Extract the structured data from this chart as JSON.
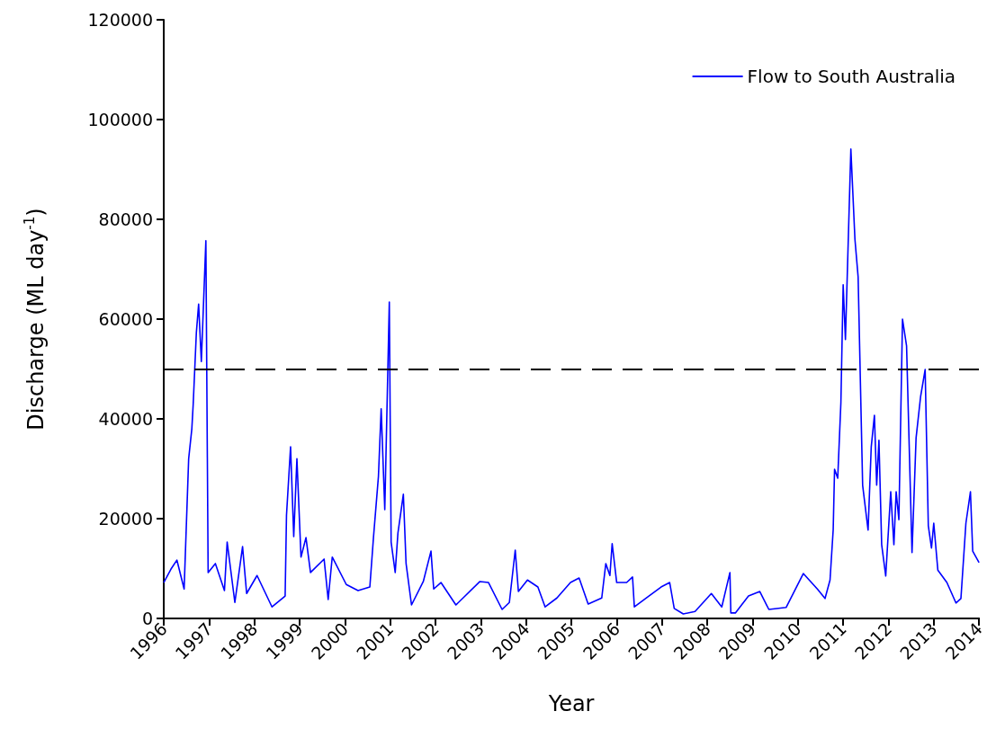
{
  "chart_data": {
    "type": "line",
    "xlabel": "Year",
    "ylabel": "Discharge (ML day$^{-1}$)",
    "xlim": [
      1996,
      2014
    ],
    "xticks": [
      1996,
      1997,
      1998,
      1999,
      2000,
      2001,
      2002,
      2003,
      2004,
      2005,
      2006,
      2007,
      2008,
      2009,
      2010,
      2011,
      2012,
      2013,
      2014
    ],
    "ylim": [
      0,
      120000
    ],
    "yticks": [
      0,
      20000,
      40000,
      60000,
      80000,
      100000,
      120000
    ],
    "grid": false,
    "legend": "top right",
    "marker": "none",
    "line_style": "solid",
    "ref_lines": [
      {
        "axis": "y",
        "value": 50000,
        "label": null,
        "color": "#000000",
        "line_style": "dashed"
      }
    ],
    "series": [
      {
        "name": "Flow to South Australia",
        "color": "#0000ff",
        "x": [
          1996.0,
          1996.16,
          1996.29,
          1996.45,
          1996.55,
          1996.62,
          1996.65,
          1996.72,
          1996.77,
          1996.83,
          1996.93,
          1996.98,
          1997.14,
          1997.34,
          1997.4,
          1997.57,
          1997.74,
          1997.83,
          1998.06,
          1998.39,
          1998.68,
          1998.71,
          1998.8,
          1998.87,
          1998.94,
          1999.03,
          1999.14,
          1999.24,
          1999.54,
          1999.63,
          1999.72,
          2000.03,
          2000.29,
          2000.55,
          2000.63,
          2000.74,
          2000.8,
          2000.88,
          2000.98,
          2001.02,
          2001.11,
          2001.17,
          2001.29,
          2001.35,
          2001.47,
          2001.73,
          2001.9,
          2001.96,
          2002.12,
          2002.45,
          2002.98,
          2003.17,
          2003.47,
          2003.63,
          2003.76,
          2003.83,
          2004.03,
          2004.26,
          2004.42,
          2004.68,
          2004.98,
          2005.17,
          2005.37,
          2005.67,
          2005.76,
          2005.85,
          2005.9,
          2006.0,
          2006.22,
          2006.35,
          2006.39,
          2006.71,
          2006.98,
          2007.17,
          2007.27,
          2007.47,
          2007.73,
          2008.09,
          2008.32,
          2008.5,
          2008.52,
          2008.62,
          2008.91,
          2009.16,
          2009.31,
          2009.36,
          2009.74,
          2010.12,
          2010.43,
          2010.6,
          2010.71,
          2010.78,
          2010.81,
          2010.88,
          2010.95,
          2011.0,
          2011.05,
          2011.17,
          2011.26,
          2011.33,
          2011.43,
          2011.55,
          2011.62,
          2011.69,
          2011.74,
          2011.79,
          2011.85,
          2011.94,
          2012.05,
          2012.12,
          2012.17,
          2012.23,
          2012.31,
          2012.4,
          2012.52,
          2012.61,
          2012.71,
          2012.81,
          2012.88,
          2012.95,
          2013.0,
          2013.09,
          2013.29,
          2013.49,
          2013.6,
          2013.71,
          2013.81,
          2013.86,
          2014.0
        ],
        "values": [
          7200,
          9900,
          11700,
          5900,
          32000,
          38000,
          42900,
          57300,
          63000,
          51500,
          75700,
          9200,
          11000,
          5600,
          15300,
          3200,
          14400,
          5000,
          8600,
          2300,
          4500,
          20700,
          34400,
          16400,
          32000,
          12300,
          16200,
          9200,
          11900,
          3800,
          12300,
          6800,
          5600,
          6300,
          16200,
          28500,
          42000,
          21800,
          63400,
          15300,
          9200,
          17100,
          24900,
          11000,
          2700,
          7400,
          13500,
          5900,
          7200,
          2700,
          7400,
          7200,
          1800,
          3200,
          13700,
          5400,
          7700,
          6300,
          2300,
          4100,
          7200,
          8100,
          2900,
          4100,
          11000,
          8600,
          15000,
          7200,
          7200,
          8300,
          2300,
          4500,
          6300,
          7200,
          2000,
          900,
          1400,
          5000,
          2300,
          9200,
          1100,
          1100,
          4500,
          5400,
          2700,
          1800,
          2200,
          9000,
          5900,
          4000,
          7700,
          17800,
          29900,
          28100,
          43300,
          66900,
          55900,
          94100,
          76000,
          68500,
          26700,
          17700,
          34400,
          40700,
          26700,
          35700,
          14800,
          8500,
          25400,
          14800,
          25400,
          19800,
          60000,
          54600,
          13200,
          36200,
          44500,
          49900,
          18600,
          14100,
          19100,
          9700,
          7200,
          3100,
          4000,
          19100,
          25400,
          13500,
          11200
        ]
      }
    ]
  }
}
